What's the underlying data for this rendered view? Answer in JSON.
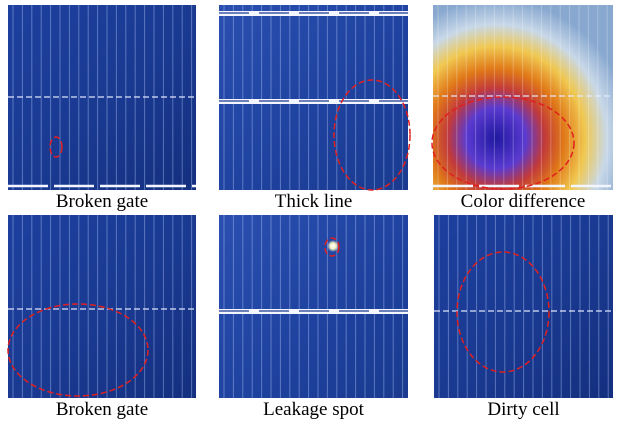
{
  "panels": [
    {
      "caption": "Broken gate"
    },
    {
      "caption": "Thick line"
    },
    {
      "caption": "Color difference"
    },
    {
      "caption": "Broken gate"
    },
    {
      "caption": "Leakage spot"
    },
    {
      "caption": "Dirty cell"
    }
  ]
}
